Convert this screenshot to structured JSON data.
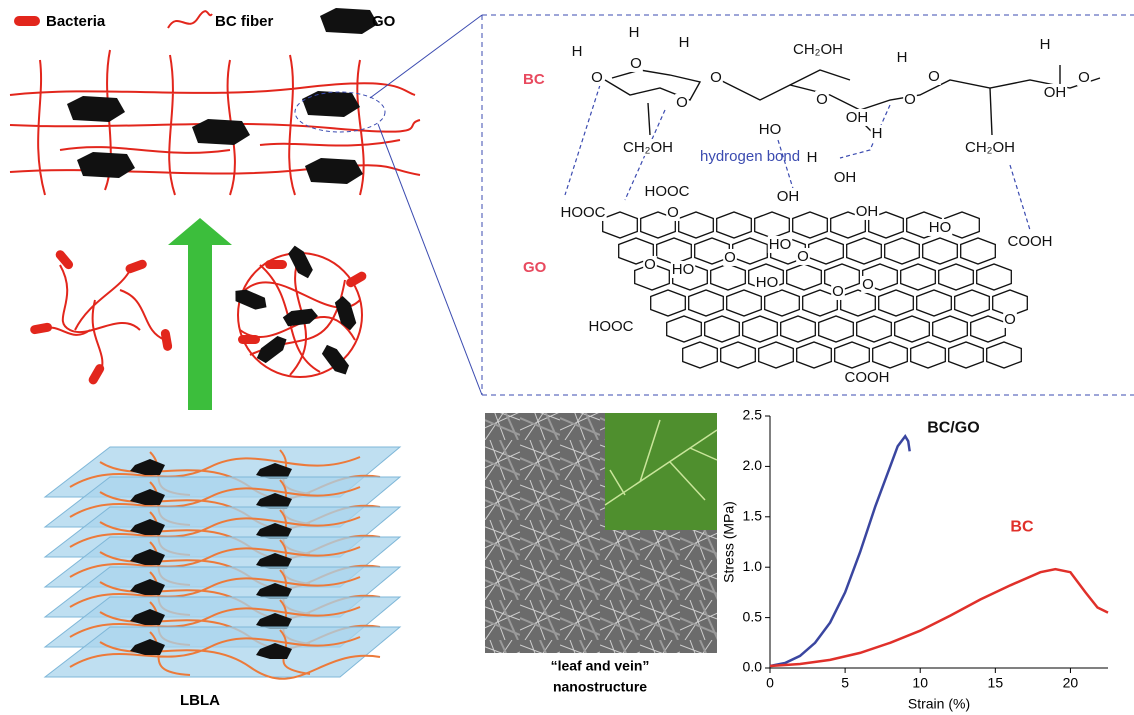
{
  "legend": {
    "bacteria": "Bacteria",
    "bc_fiber": "BC fiber",
    "go": "GO"
  },
  "schematic_label": "LBLA",
  "structure": {
    "bc_label": "BC",
    "go_label": "GO",
    "hydrogen_bond": "hydrogen bond",
    "atoms": [
      "H",
      "O",
      "H",
      "O",
      "H",
      "O",
      "O",
      "CH₂OH",
      "O",
      "HO",
      "OH",
      "H",
      "H",
      "O",
      "H",
      "O",
      "H",
      "OH",
      "O",
      "CH₂OH",
      "CH₂OH",
      "HOOC",
      "OH",
      "OH",
      "OH",
      "HOOC",
      "HO",
      "COOH",
      "O",
      "HO",
      "O",
      "O",
      "HO",
      "O",
      "HO",
      "O",
      "O",
      "HOOC",
      "O",
      "COOH"
    ]
  },
  "micrograph_caption": [
    "“leaf and vein”",
    "nanostructure"
  ],
  "chart_data": {
    "type": "line",
    "xlabel": "Strain (%)",
    "ylabel": "Stress (MPa)",
    "xlim": [
      0,
      22.5
    ],
    "ylim": [
      0,
      2.5
    ],
    "xticks": [
      0,
      5,
      10,
      15,
      20
    ],
    "yticks": [
      {
        "value": 0,
        "label": "0.0"
      },
      0.5,
      {
        "value": 1,
        "label": "1.0"
      },
      1.5,
      {
        "value": 2,
        "label": "2.0"
      },
      2.5
    ],
    "series": [
      {
        "name": "BC/GO",
        "color": "#3a46a0",
        "x": [
          0,
          1,
          2,
          3,
          4,
          5,
          6,
          7,
          8,
          8.5,
          9,
          9.2,
          9.3
        ],
        "values": [
          0.02,
          0.05,
          0.12,
          0.25,
          0.45,
          0.75,
          1.15,
          1.6,
          2.0,
          2.2,
          2.3,
          2.25,
          2.15
        ]
      },
      {
        "name": "BC",
        "color": "#e0302a",
        "x": [
          0,
          2,
          4,
          6,
          8,
          10,
          12,
          14,
          16,
          18,
          19,
          20,
          21,
          21.8,
          22.5
        ],
        "values": [
          0.02,
          0.04,
          0.08,
          0.15,
          0.25,
          0.37,
          0.52,
          0.68,
          0.82,
          0.95,
          0.98,
          0.95,
          0.75,
          0.6,
          0.55
        ]
      }
    ]
  }
}
